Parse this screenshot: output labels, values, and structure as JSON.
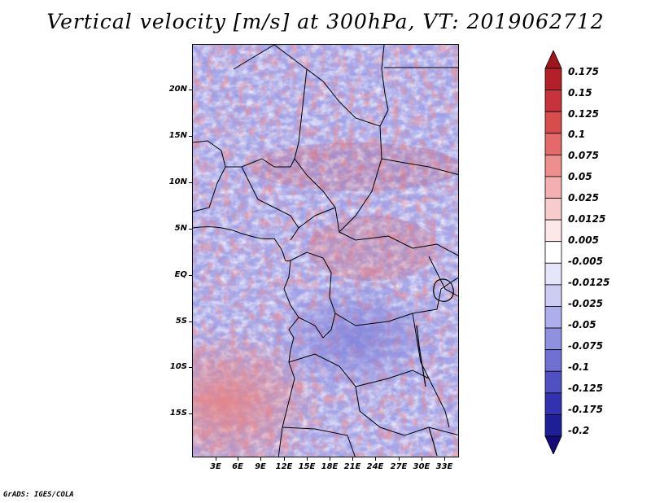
{
  "title": "Vertical velocity [m/s] at 300hPa, VT: 2019062712",
  "credit": "GrADS: IGES/COLA",
  "map": {
    "lat_labels": [
      "20N",
      "15N",
      "10N",
      "5N",
      "EQ",
      "5S",
      "10S",
      "15S"
    ],
    "lon_labels": [
      "3E",
      "6E",
      "9E",
      "12E",
      "15E",
      "18E",
      "21E",
      "24E",
      "27E",
      "30E",
      "33E"
    ],
    "lat_range": [
      -20,
      24
    ],
    "lon_range": [
      0,
      35
    ]
  },
  "colorbar": {
    "levels": [
      "0.175",
      "0.15",
      "0.125",
      "0.1",
      "0.075",
      "0.05",
      "0.025",
      "0.0125",
      "0.005",
      "-0.005",
      "-0.0125",
      "-0.025",
      "-0.05",
      "-0.075",
      "-0.1",
      "-0.125",
      "-0.175",
      "-0.2"
    ],
    "colors": [
      "#a0141e",
      "#b4202a",
      "#c8323a",
      "#d84c4c",
      "#e46a6a",
      "#ee8e8e",
      "#f4b0b0",
      "#f8cccc",
      "#fce8e8",
      "#ffffff",
      "#e6e6fa",
      "#ccccf4",
      "#aeaeec",
      "#9090e0",
      "#7070d2",
      "#5050c2",
      "#3232b0",
      "#1e1e96",
      "#140a78"
    ]
  }
}
